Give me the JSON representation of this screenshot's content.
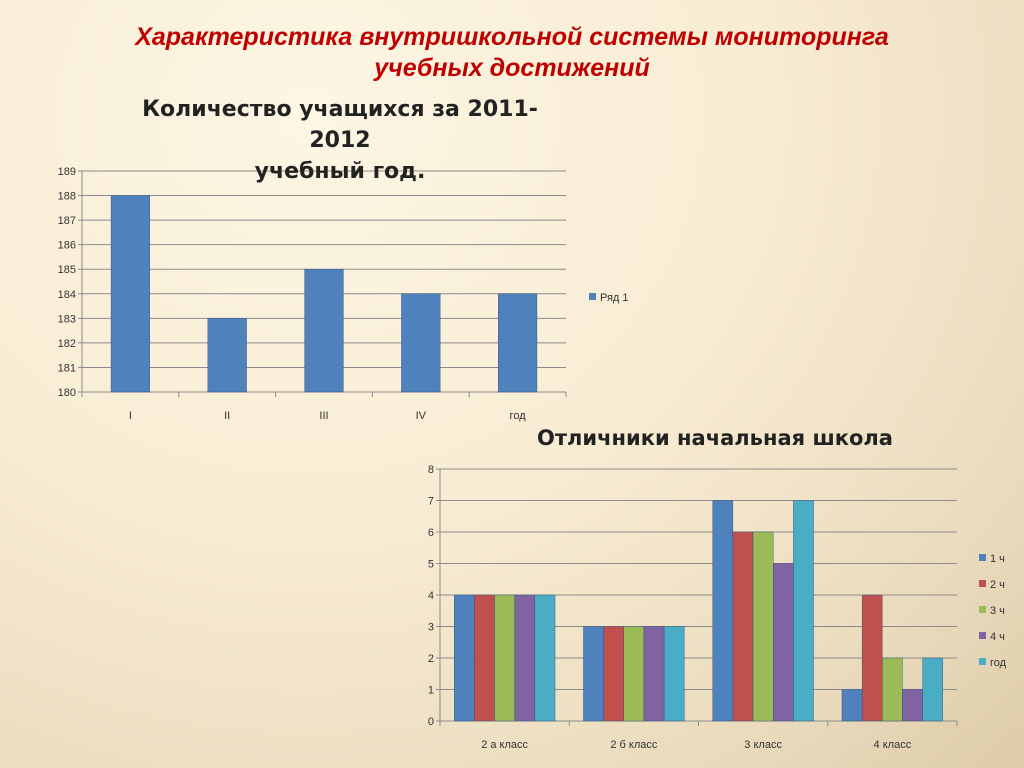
{
  "slide": {
    "title_line1": "Характеристика внутришкольной системы мониторинга",
    "title_line2": "учебных достижений"
  },
  "chart_data": [
    {
      "type": "bar",
      "title_line1": "Количество учащихся за 2011-2012",
      "title_line2": "учебный год.",
      "categories": [
        "I",
        "II",
        "III",
        "IV",
        "год"
      ],
      "series": [
        {
          "name": "Ряд 1",
          "values": [
            188,
            183,
            185,
            184,
            184
          ],
          "color": "#4f81bd"
        }
      ],
      "ylim": [
        180,
        189
      ],
      "yticks": [
        180,
        181,
        182,
        183,
        184,
        185,
        186,
        187,
        188,
        189
      ],
      "grid": true,
      "legend": "right"
    },
    {
      "type": "bar",
      "title": "Отличники начальная школа",
      "categories": [
        "2 а класс",
        "2 б класс",
        "3 класс",
        "4 класс"
      ],
      "series": [
        {
          "name": "1 ч",
          "values": [
            4,
            3,
            7,
            1
          ],
          "color": "#4f81bd"
        },
        {
          "name": "2 ч",
          "values": [
            4,
            3,
            6,
            4
          ],
          "color": "#c0504d"
        },
        {
          "name": "3 ч",
          "values": [
            4,
            3,
            6,
            2
          ],
          "color": "#9bbb59"
        },
        {
          "name": "4 ч",
          "values": [
            4,
            3,
            5,
            1
          ],
          "color": "#8064a2"
        },
        {
          "name": "год",
          "values": [
            4,
            3,
            7,
            2
          ],
          "color": "#4bacc6"
        }
      ],
      "ylim": [
        0,
        8
      ],
      "yticks": [
        0,
        1,
        2,
        3,
        4,
        5,
        6,
        7,
        8
      ],
      "grid": true,
      "legend": "right"
    }
  ]
}
